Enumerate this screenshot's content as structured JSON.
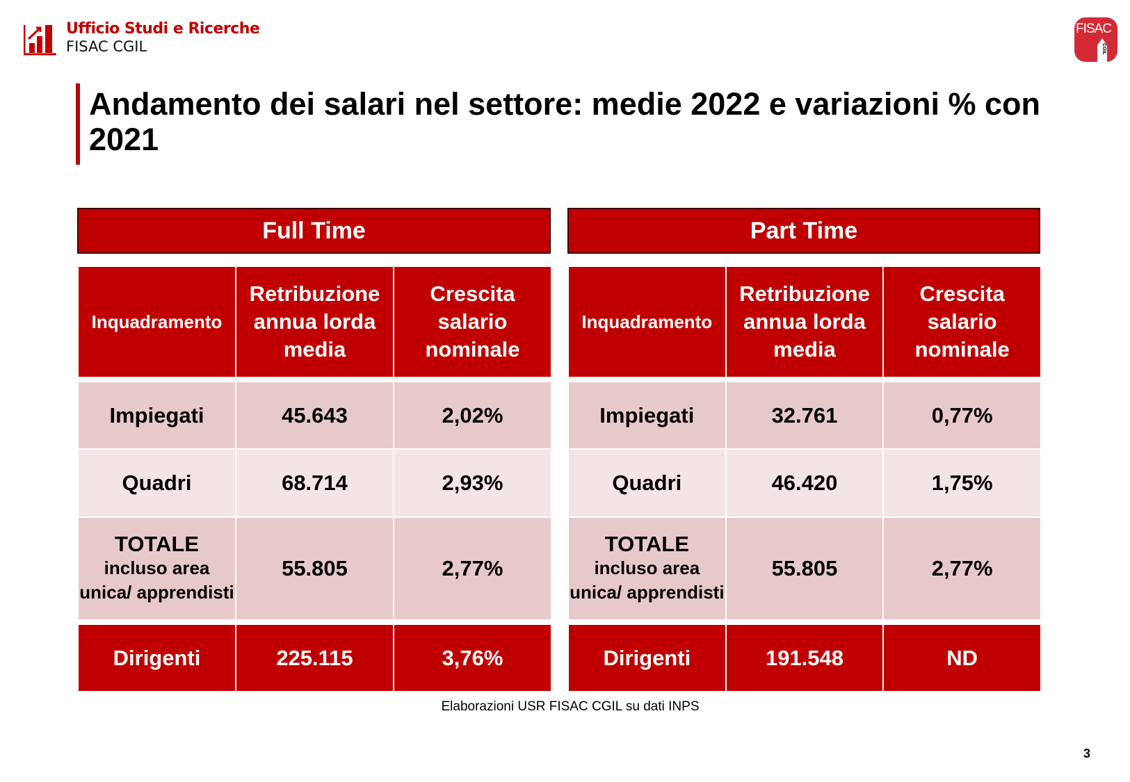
{
  "header": {
    "org_line1": "Ufficio Studi e Ricerche",
    "org_line2": "FISAC CGIL",
    "logo_text": "FISAC",
    "logo_sub": "CGIL"
  },
  "title": "Andamento dei salari nel settore: medie 2022 e variazioni % con 2021",
  "tables": [
    {
      "band": "Full Time",
      "columns": [
        "Inquadramento",
        "Retribuzione annua lorda media",
        "Crescita salario nominale"
      ],
      "rows": [
        [
          "Impiegati",
          "45.643",
          "2,02%"
        ],
        [
          "Quadri",
          "68.714",
          "2,93%"
        ]
      ],
      "total": {
        "label": "TOTALE",
        "sub": "incluso area unica/ apprendisti",
        "value": "55.805",
        "growth": "2,77%"
      },
      "dirigenti": [
        "Dirigenti",
        "225.115",
        "3,76%"
      ]
    },
    {
      "band": "Part Time",
      "columns": [
        "Inquadramento",
        "Retribuzione annua lorda media",
        "Crescita salario nominale"
      ],
      "rows": [
        [
          "Impiegati",
          "32.761",
          "0,77%"
        ],
        [
          "Quadri",
          "46.420",
          "1,75%"
        ]
      ],
      "total": {
        "label": "TOTALE",
        "sub": "incluso area unica/ apprendisti",
        "value": "55.805",
        "growth": "2,77%"
      },
      "dirigenti": [
        "Dirigenti",
        "191.548",
        "ND"
      ]
    }
  ],
  "source": "Elaborazioni USR FISAC CGIL su dati INPS",
  "page_number": "3",
  "colors": {
    "accent": "#c00000",
    "row_dark": "#e8c9ca",
    "row_light": "#f3e4e5"
  }
}
